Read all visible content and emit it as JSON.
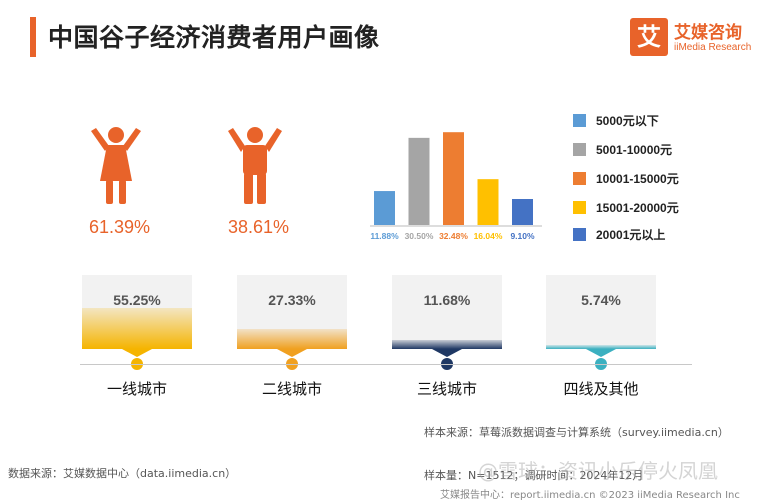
{
  "header": {
    "title": "中国谷子经济消费者用户画像",
    "logo_mark": "艾",
    "logo_cn": "艾媒咨询",
    "logo_en": "iiMedia Research"
  },
  "colors": {
    "accent": "#e8632a",
    "tier_gold": "#f5b400"
  },
  "gender": [
    {
      "icon": "female-figure",
      "value": "61.39%"
    },
    {
      "icon": "male-figure",
      "value": "38.61%"
    }
  ],
  "chart_data": [
    {
      "type": "bar",
      "categories": [
        "5000元以下",
        "5001-10000元",
        "10001-15000元",
        "15001-20000元",
        "20001元以上"
      ],
      "values": [
        11.88,
        30.5,
        32.48,
        16.04,
        9.1
      ],
      "data_labels": [
        "11.88%",
        "30.50%",
        "32.48%",
        "16.04%",
        "9.10%"
      ],
      "colors": [
        "#5b9bd5",
        "#a5a5a5",
        "#ed7d31",
        "#ffc000",
        "#4472c4"
      ],
      "legend": "right",
      "ylim": [
        0,
        35
      ]
    },
    {
      "type": "bar",
      "categories": [
        "一线城市",
        "二线城市",
        "三线城市",
        "四线及其他"
      ],
      "values": [
        55.25,
        27.33,
        11.68,
        5.74
      ],
      "data_labels": [
        "55.25%",
        "27.33%",
        "11.68%",
        "5.74%"
      ],
      "ylim": [
        0,
        100
      ]
    }
  ],
  "tier_colors": [
    "#f5b400",
    "#f0a020",
    "#1f3864",
    "#3bb0c0"
  ],
  "footer": {
    "source_left": "数据来源：艾媒数据中心（data.iimedia.cn）",
    "sample_source": "样本来源：草莓派数据调查与计算系统（survey.iimedia.cn）",
    "sample_size": "样本量：N=1512；调研时间：2024年12月",
    "report_url": "艾媒报告中心：report.iimedia.cn    ©2023  iiMedia Research  Inc",
    "watermark": "@雪球：资讯小乐停火凤凰"
  }
}
